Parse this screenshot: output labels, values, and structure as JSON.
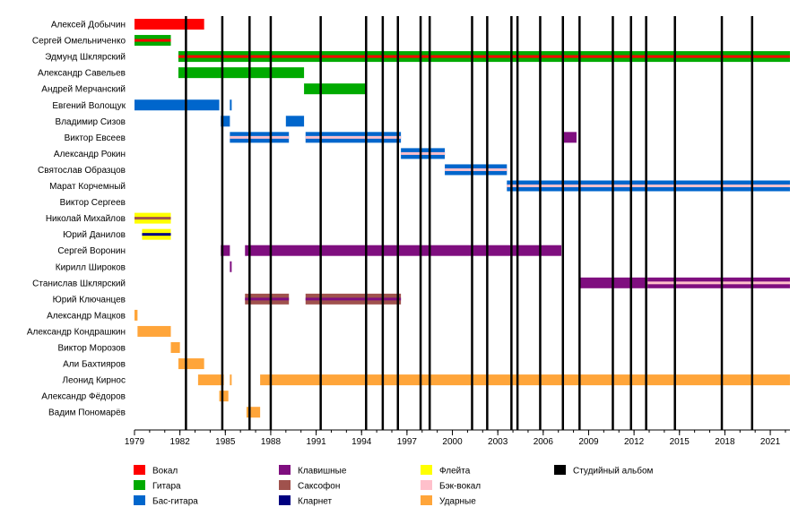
{
  "chart_data": {
    "type": "timeline",
    "x_range": [
      1979,
      2022.3
    ],
    "x_ticks": [
      1979,
      1982,
      1985,
      1988,
      1991,
      1994,
      1997,
      2000,
      2003,
      2006,
      2009,
      2012,
      2015,
      2018,
      2021
    ],
    "roles": [
      {
        "key": "vocal",
        "label": "Вокал",
        "color": "#ff0000"
      },
      {
        "key": "guitar",
        "label": "Гитара",
        "color": "#00aa00"
      },
      {
        "key": "bass",
        "label": "Бас-гитара",
        "color": "#0066cc"
      },
      {
        "key": "keys",
        "label": "Клавишные",
        "color": "#7f0e7f"
      },
      {
        "key": "sax",
        "label": "Саксофон",
        "color": "#a0524d"
      },
      {
        "key": "clarinet",
        "label": "Кларнет",
        "color": "#000080"
      },
      {
        "key": "flute",
        "label": "Флейта",
        "color": "#ffff00"
      },
      {
        "key": "backing",
        "label": "Бэк-вокал",
        "color": "#ffc0cb"
      },
      {
        "key": "drums",
        "label": "Ударные",
        "color": "#ffa53a"
      },
      {
        "key": "album",
        "label": "Студийный альбом",
        "color": "#000000"
      }
    ],
    "album_years": [
      1982.4,
      1984.8,
      1986.6,
      1988.0,
      1991.3,
      1994.3,
      1995.4,
      1996.4,
      1997.9,
      1998.5,
      2001.3,
      2002.3,
      2003.9,
      2004.3,
      2005.8,
      2007.3,
      2008.4,
      2010.6,
      2011.8,
      2012.8,
      2014.7,
      2017.8,
      2019.8
    ],
    "members": [
      {
        "name": "Алексей Добычин",
        "bars": [
          {
            "role": "vocal",
            "start": 1979.0,
            "end": 1983.6
          }
        ]
      },
      {
        "name": "Сергей Омельниченко",
        "bars": [
          {
            "role": "guitar",
            "start": 1979.0,
            "end": 1981.4,
            "accent": "vocal"
          }
        ]
      },
      {
        "name": "Эдмунд Шклярский",
        "bars": [
          {
            "role": "guitar",
            "start": 1981.9,
            "end": 2022.3,
            "accent": "vocal"
          }
        ]
      },
      {
        "name": "Александр Савельев",
        "bars": [
          {
            "role": "guitar",
            "start": 1981.9,
            "end": 1990.2
          }
        ]
      },
      {
        "name": "Андрей Мерчанский",
        "bars": [
          {
            "role": "guitar",
            "start": 1990.2,
            "end": 1994.3
          }
        ]
      },
      {
        "name": "Евгений Волощук",
        "bars": [
          {
            "role": "bass",
            "start": 1979.0,
            "end": 1984.6
          },
          {
            "role": "bass",
            "start": 1985.3,
            "end": 1985.4
          }
        ]
      },
      {
        "name": "Владимир Сизов",
        "bars": [
          {
            "role": "bass",
            "start": 1984.7,
            "end": 1985.3
          },
          {
            "role": "bass",
            "start": 1989.0,
            "end": 1990.2
          }
        ]
      },
      {
        "name": "Виктор Евсеев",
        "bars": [
          {
            "role": "bass",
            "start": 1985.3,
            "end": 1989.2,
            "accent": "backing"
          },
          {
            "role": "bass",
            "start": 1990.3,
            "end": 1996.6,
            "accent": "backing"
          },
          {
            "role": "keys",
            "start": 2007.3,
            "end": 2008.2
          }
        ]
      },
      {
        "name": "Александр Рокин",
        "bars": [
          {
            "role": "bass",
            "start": 1996.6,
            "end": 1999.5,
            "accent": "backing"
          }
        ]
      },
      {
        "name": "Святослав Образцов",
        "bars": [
          {
            "role": "bass",
            "start": 1999.5,
            "end": 2003.6,
            "accent": "backing"
          }
        ]
      },
      {
        "name": "Марат Корчемный",
        "bars": [
          {
            "role": "bass",
            "start": 2003.6,
            "end": 2022.3,
            "accent": "backing"
          }
        ]
      },
      {
        "name": "Виктор Сергеев",
        "bars": []
      },
      {
        "name": "Николай Михайлов",
        "bars": [
          {
            "role": "flute",
            "start": 1979.0,
            "end": 1981.4,
            "accent": "sax"
          }
        ]
      },
      {
        "name": "Юрий Данилов",
        "bars": [
          {
            "role": "flute",
            "start": 1979.5,
            "end": 1981.4,
            "accent": "clarinet"
          }
        ]
      },
      {
        "name": "Сергей Воронин",
        "bars": [
          {
            "role": "keys",
            "start": 1984.7,
            "end": 1985.3
          },
          {
            "role": "keys",
            "start": 1986.3,
            "end": 2007.2
          }
        ]
      },
      {
        "name": "Кирилл Широков",
        "bars": [
          {
            "role": "keys",
            "start": 1985.3,
            "end": 1985.4
          }
        ]
      },
      {
        "name": "Станислав Шклярский",
        "bars": [
          {
            "role": "keys",
            "start": 2008.4,
            "end": 2012.9
          },
          {
            "role": "keys",
            "start": 2012.9,
            "end": 2022.3,
            "accent": "backing"
          }
        ]
      },
      {
        "name": "Юрий Ключанцев",
        "bars": [
          {
            "role": "sax",
            "start": 1986.3,
            "end": 1989.2,
            "accent": "keys"
          },
          {
            "role": "sax",
            "start": 1990.3,
            "end": 1994.4,
            "accent": "keys"
          },
          {
            "role": "sax",
            "start": 1994.4,
            "end": 1996.6,
            "accent": "keys"
          }
        ]
      },
      {
        "name": "Александр Мацков",
        "bars": [
          {
            "role": "drums",
            "start": 1979.0,
            "end": 1979.2
          }
        ]
      },
      {
        "name": "Александр Кондрашкин",
        "bars": [
          {
            "role": "drums",
            "start": 1979.2,
            "end": 1981.4
          }
        ]
      },
      {
        "name": "Виктор Морозов",
        "bars": [
          {
            "role": "drums",
            "start": 1981.4,
            "end": 1982.0
          }
        ]
      },
      {
        "name": "Али Бахтияров",
        "bars": [
          {
            "role": "drums",
            "start": 1981.9,
            "end": 1983.6
          }
        ]
      },
      {
        "name": "Леонид Кирнос",
        "bars": [
          {
            "role": "drums",
            "start": 1983.2,
            "end": 1984.9
          },
          {
            "role": "drums",
            "start": 1985.3,
            "end": 1985.4
          },
          {
            "role": "drums",
            "start": 1987.3,
            "end": 2022.3
          }
        ]
      },
      {
        "name": "Александр Фёдоров",
        "bars": [
          {
            "role": "drums",
            "start": 1984.6,
            "end": 1985.2
          }
        ]
      },
      {
        "name": "Вадим Пономарёв",
        "bars": [
          {
            "role": "drums",
            "start": 1986.4,
            "end": 1987.3
          }
        ]
      }
    ]
  }
}
